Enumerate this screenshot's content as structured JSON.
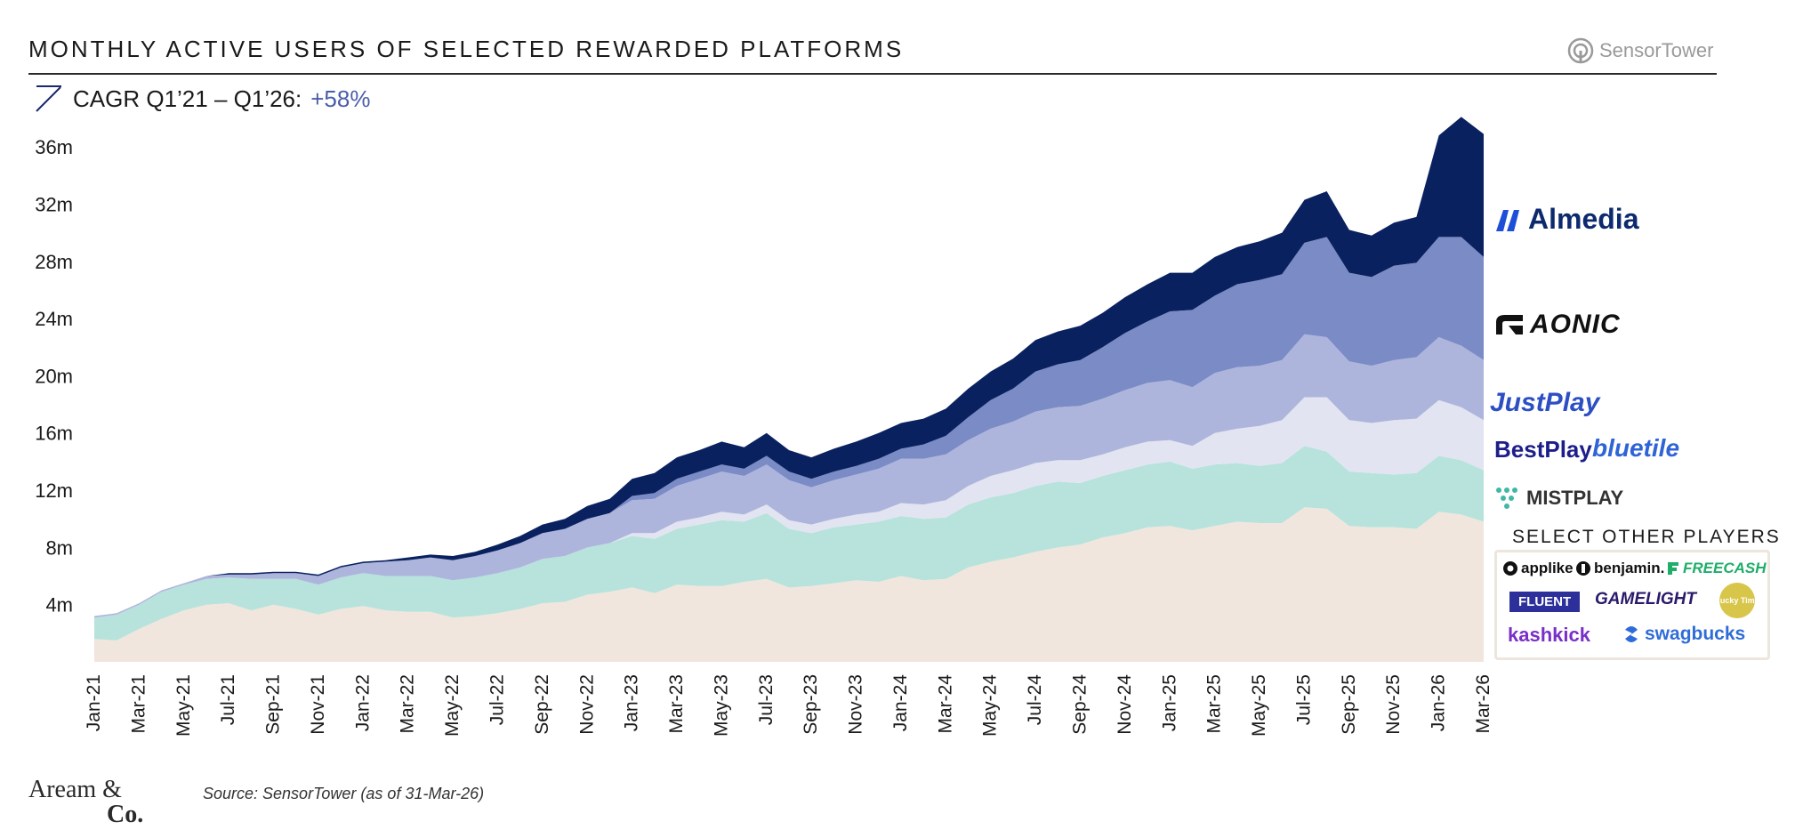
{
  "header": {
    "title": "MONTHLY ACTIVE USERS OF SELECTED REWARDED PLATFORMS",
    "brand": "SensorTower",
    "cagr_label": "CAGR Q1’21 – Q1’26:",
    "cagr_value": "+58%"
  },
  "legend": {
    "almedia": "Almedia",
    "aonic": "AONIC",
    "justplay": "JustPlay",
    "bestplay": "BestPlay",
    "bluetile": "bluetile",
    "mistplay": "MISTPLAY"
  },
  "others": {
    "title": "SELECT OTHER PLAYERS",
    "applike": "applike",
    "benjamin": "benjamin.",
    "freecash": "FREECASH",
    "fluent": "FLUENT",
    "gamelight": "GAMELIGHT",
    "lucky": "Lucky Time",
    "kashkick": "kashkick",
    "swagbucks": "swagbucks"
  },
  "footer": {
    "source": "Source: SensorTower (as of 31-Mar-26)",
    "brand_line1": "Aream &",
    "brand_line2": "Co."
  },
  "colors": {
    "almedia": "#0a2160",
    "aonic": "#7a8bc6",
    "justplay": "#aeb5dc",
    "bestplay": "#e3e4f1",
    "mistplay": "#b7e3dc",
    "others": "#f1e6dd"
  },
  "chart_data": {
    "type": "area",
    "stacked": true,
    "title": "MONTHLY ACTIVE USERS OF SELECTED REWARDED PLATFORMS",
    "ylabel": "",
    "xlabel": "",
    "ylim": [
      0,
      40
    ],
    "yticks": [
      4,
      8,
      12,
      16,
      20,
      24,
      28,
      32,
      36
    ],
    "ytick_labels": [
      "4m",
      "8m",
      "12m",
      "16m",
      "20m",
      "24m",
      "28m",
      "32m",
      "36m"
    ],
    "xtick_labels": [
      "Jan-21",
      "Mar-21",
      "May-21",
      "Jul-21",
      "Sep-21",
      "Nov-21",
      "Jan-22",
      "Mar-22",
      "May-22",
      "Jul-22",
      "Sep-22",
      "Nov-22",
      "Jan-23",
      "Mar-23",
      "May-23",
      "Jul-23",
      "Sep-23",
      "Nov-23",
      "Jan-24",
      "Mar-24",
      "May-24",
      "Jul-24",
      "Sep-24",
      "Nov-24",
      "Jan-25",
      "Mar-25",
      "May-25",
      "Jul-25",
      "Sep-25",
      "Nov-25",
      "Jan-26",
      "Mar-26"
    ],
    "series": [
      {
        "name": "Others",
        "values": [
          1.6,
          1.5,
          2.3,
          3.0,
          3.6,
          4.0,
          4.1,
          3.6,
          4.0,
          3.7,
          3.3,
          3.7,
          3.9,
          3.6,
          3.5,
          3.5,
          3.1,
          3.2,
          3.4,
          3.7,
          4.1,
          4.2,
          4.7,
          4.9,
          5.2,
          4.8,
          5.4,
          5.3,
          5.3,
          5.6,
          5.8,
          5.2,
          5.3,
          5.5,
          5.7,
          5.6,
          6.0,
          5.7,
          5.8,
          6.6,
          7.0,
          7.3,
          7.7,
          8.0,
          8.2,
          8.7,
          9.0,
          9.4,
          9.5,
          9.2,
          9.5,
          9.8,
          9.7,
          9.7,
          10.8,
          10.7,
          9.5,
          9.4,
          9.4,
          9.3,
          10.5,
          10.3,
          9.8
        ]
      },
      {
        "name": "Mistplay",
        "values": [
          1.5,
          1.8,
          1.7,
          1.9,
          1.8,
          1.8,
          1.8,
          2.2,
          1.8,
          2.1,
          2.1,
          2.2,
          2.3,
          2.4,
          2.5,
          2.5,
          2.6,
          2.7,
          2.8,
          2.9,
          3.1,
          3.2,
          3.3,
          3.4,
          3.6,
          3.8,
          3.9,
          4.3,
          4.6,
          4.2,
          4.6,
          4.1,
          3.7,
          3.9,
          3.9,
          4.2,
          4.2,
          4.3,
          4.3,
          4.4,
          4.5,
          4.5,
          4.6,
          4.6,
          4.3,
          4.3,
          4.4,
          4.4,
          4.5,
          4.3,
          4.3,
          4.1,
          4.0,
          4.2,
          4.3,
          4.0,
          3.8,
          3.8,
          3.7,
          3.9,
          3.9,
          3.8,
          3.6
        ]
      },
      {
        "name": "BestPlay / bluetile",
        "values": [
          0,
          0,
          0,
          0,
          0,
          0,
          0,
          0,
          0,
          0,
          0,
          0,
          0,
          0,
          0,
          0,
          0,
          0,
          0,
          0,
          0,
          0,
          0,
          0,
          0.2,
          0.4,
          0.5,
          0.5,
          0.6,
          0.5,
          0.6,
          0.6,
          0.6,
          0.6,
          0.7,
          0.7,
          0.9,
          1.0,
          1.2,
          1.3,
          1.5,
          1.6,
          1.6,
          1.5,
          1.6,
          1.5,
          1.6,
          1.6,
          1.5,
          1.6,
          2.2,
          2.4,
          2.8,
          3.0,
          3.4,
          3.8,
          3.6,
          3.5,
          3.8,
          3.8,
          3.9,
          3.7,
          3.5
        ]
      },
      {
        "name": "JustPlay",
        "values": [
          0.1,
          0.1,
          0.1,
          0.1,
          0.1,
          0.2,
          0.2,
          0.3,
          0.4,
          0.4,
          0.6,
          0.7,
          0.7,
          1.0,
          1.1,
          1.3,
          1.4,
          1.5,
          1.6,
          1.7,
          1.8,
          1.9,
          2.0,
          2.1,
          2.3,
          2.4,
          2.5,
          2.7,
          2.8,
          2.7,
          2.8,
          2.8,
          2.6,
          2.7,
          2.8,
          3.0,
          3.1,
          3.2,
          3.2,
          3.2,
          3.3,
          3.4,
          3.6,
          3.7,
          3.8,
          3.9,
          4.0,
          4.1,
          4.2,
          4.1,
          4.2,
          4.3,
          4.2,
          4.2,
          4.4,
          4.2,
          4.1,
          4.0,
          4.2,
          4.3,
          4.4,
          4.3,
          4.2
        ]
      },
      {
        "name": "AONIC",
        "values": [
          0,
          0,
          0,
          0,
          0,
          0,
          0,
          0,
          0,
          0,
          0,
          0,
          0,
          0,
          0,
          0,
          0,
          0,
          0,
          0,
          0,
          0,
          0,
          0,
          0.3,
          0.4,
          0.5,
          0.5,
          0.5,
          0.5,
          0.6,
          0.6,
          0.6,
          0.6,
          0.6,
          0.7,
          0.7,
          1.0,
          1.3,
          1.6,
          2.0,
          2.3,
          2.8,
          3.0,
          3.2,
          3.6,
          4.0,
          4.3,
          4.8,
          5.4,
          5.4,
          5.8,
          6.0,
          6.0,
          6.4,
          7.0,
          6.2,
          6.2,
          6.6,
          6.6,
          7.0,
          7.6,
          7.2
        ]
      },
      {
        "name": "Almedia",
        "values": [
          0,
          0,
          0,
          0,
          0,
          0,
          0.1,
          0.1,
          0.1,
          0.1,
          0.1,
          0.1,
          0.1,
          0.1,
          0.2,
          0.2,
          0.3,
          0.3,
          0.4,
          0.5,
          0.6,
          0.7,
          0.9,
          1.0,
          1.2,
          1.4,
          1.5,
          1.5,
          1.6,
          1.5,
          1.6,
          1.5,
          1.5,
          1.6,
          1.7,
          1.8,
          1.8,
          1.8,
          1.9,
          2.0,
          2.0,
          2.1,
          2.2,
          2.3,
          2.4,
          2.4,
          2.5,
          2.6,
          2.7,
          2.6,
          2.7,
          2.6,
          2.7,
          2.9,
          3.0,
          3.2,
          3.0,
          2.9,
          3.0,
          3.2,
          7.1,
          8.4,
          8.6
        ]
      }
    ]
  }
}
